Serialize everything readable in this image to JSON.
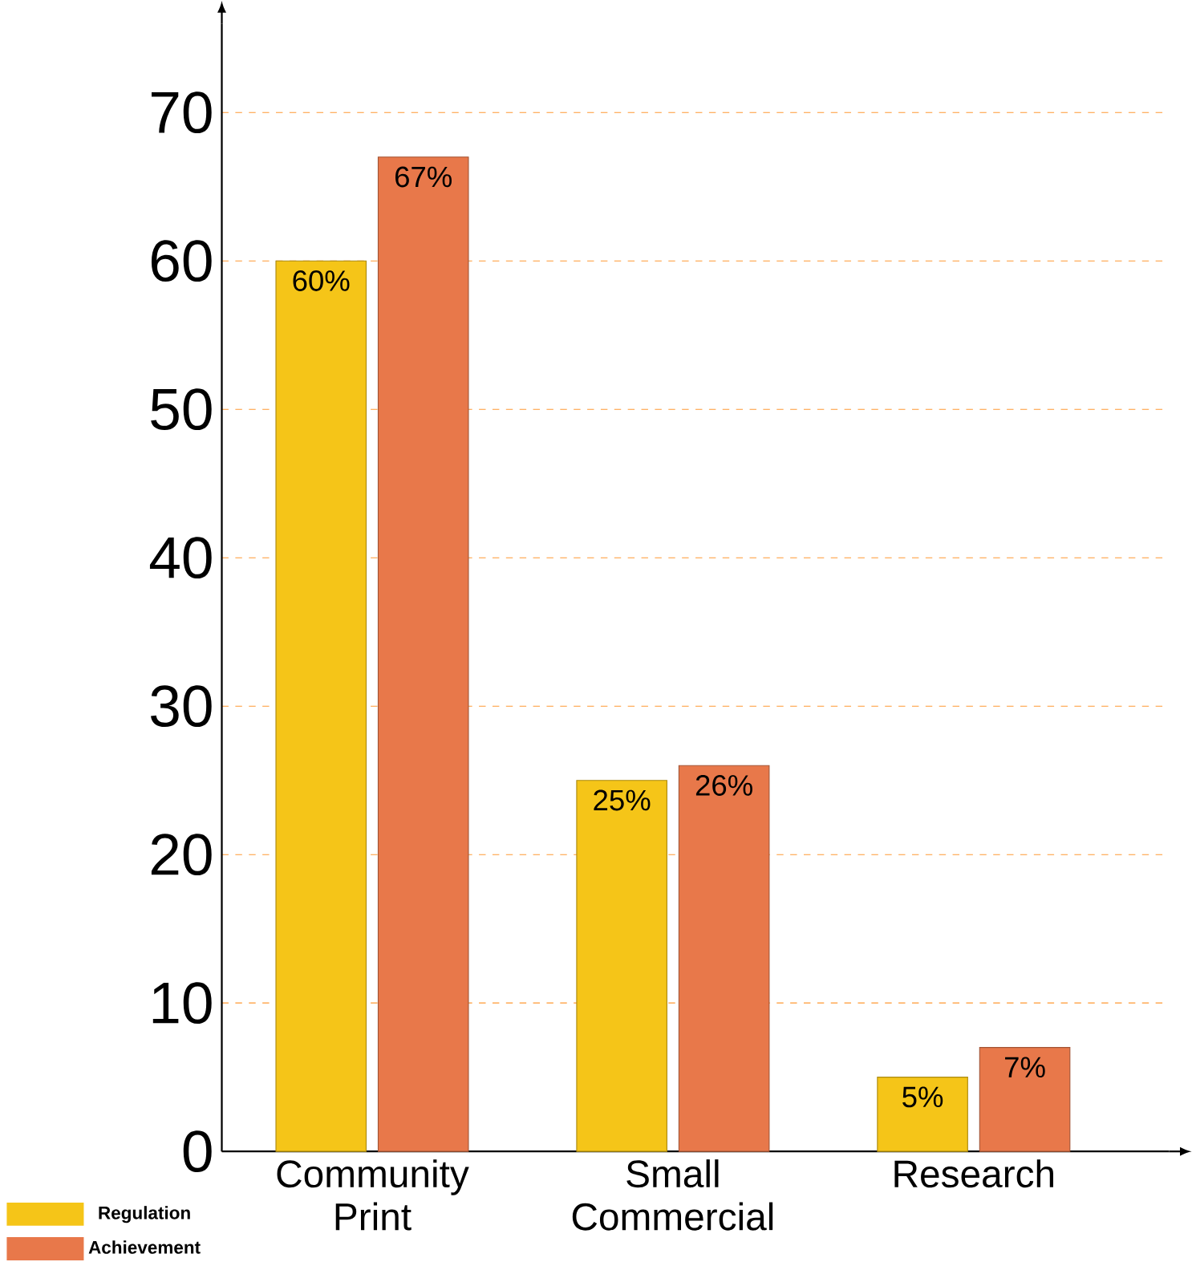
{
  "chart_data": {
    "type": "bar",
    "categories": [
      "Community Print",
      "Small Commercial",
      "Research"
    ],
    "series": [
      {
        "name": "Regulation",
        "color": "#f5c518",
        "values": [
          60,
          25,
          5
        ],
        "value_labels": [
          "60%",
          "25%",
          "5%"
        ]
      },
      {
        "name": "Achievement",
        "color": "#e8784a",
        "values": [
          67,
          26,
          7
        ],
        "value_labels": [
          "67%",
          "26%",
          "7%"
        ]
      }
    ],
    "ylim": [
      0,
      76
    ],
    "yticks": [
      0,
      10,
      20,
      30,
      40,
      50,
      60,
      70
    ],
    "grid": "y",
    "legend": "bottom left"
  }
}
